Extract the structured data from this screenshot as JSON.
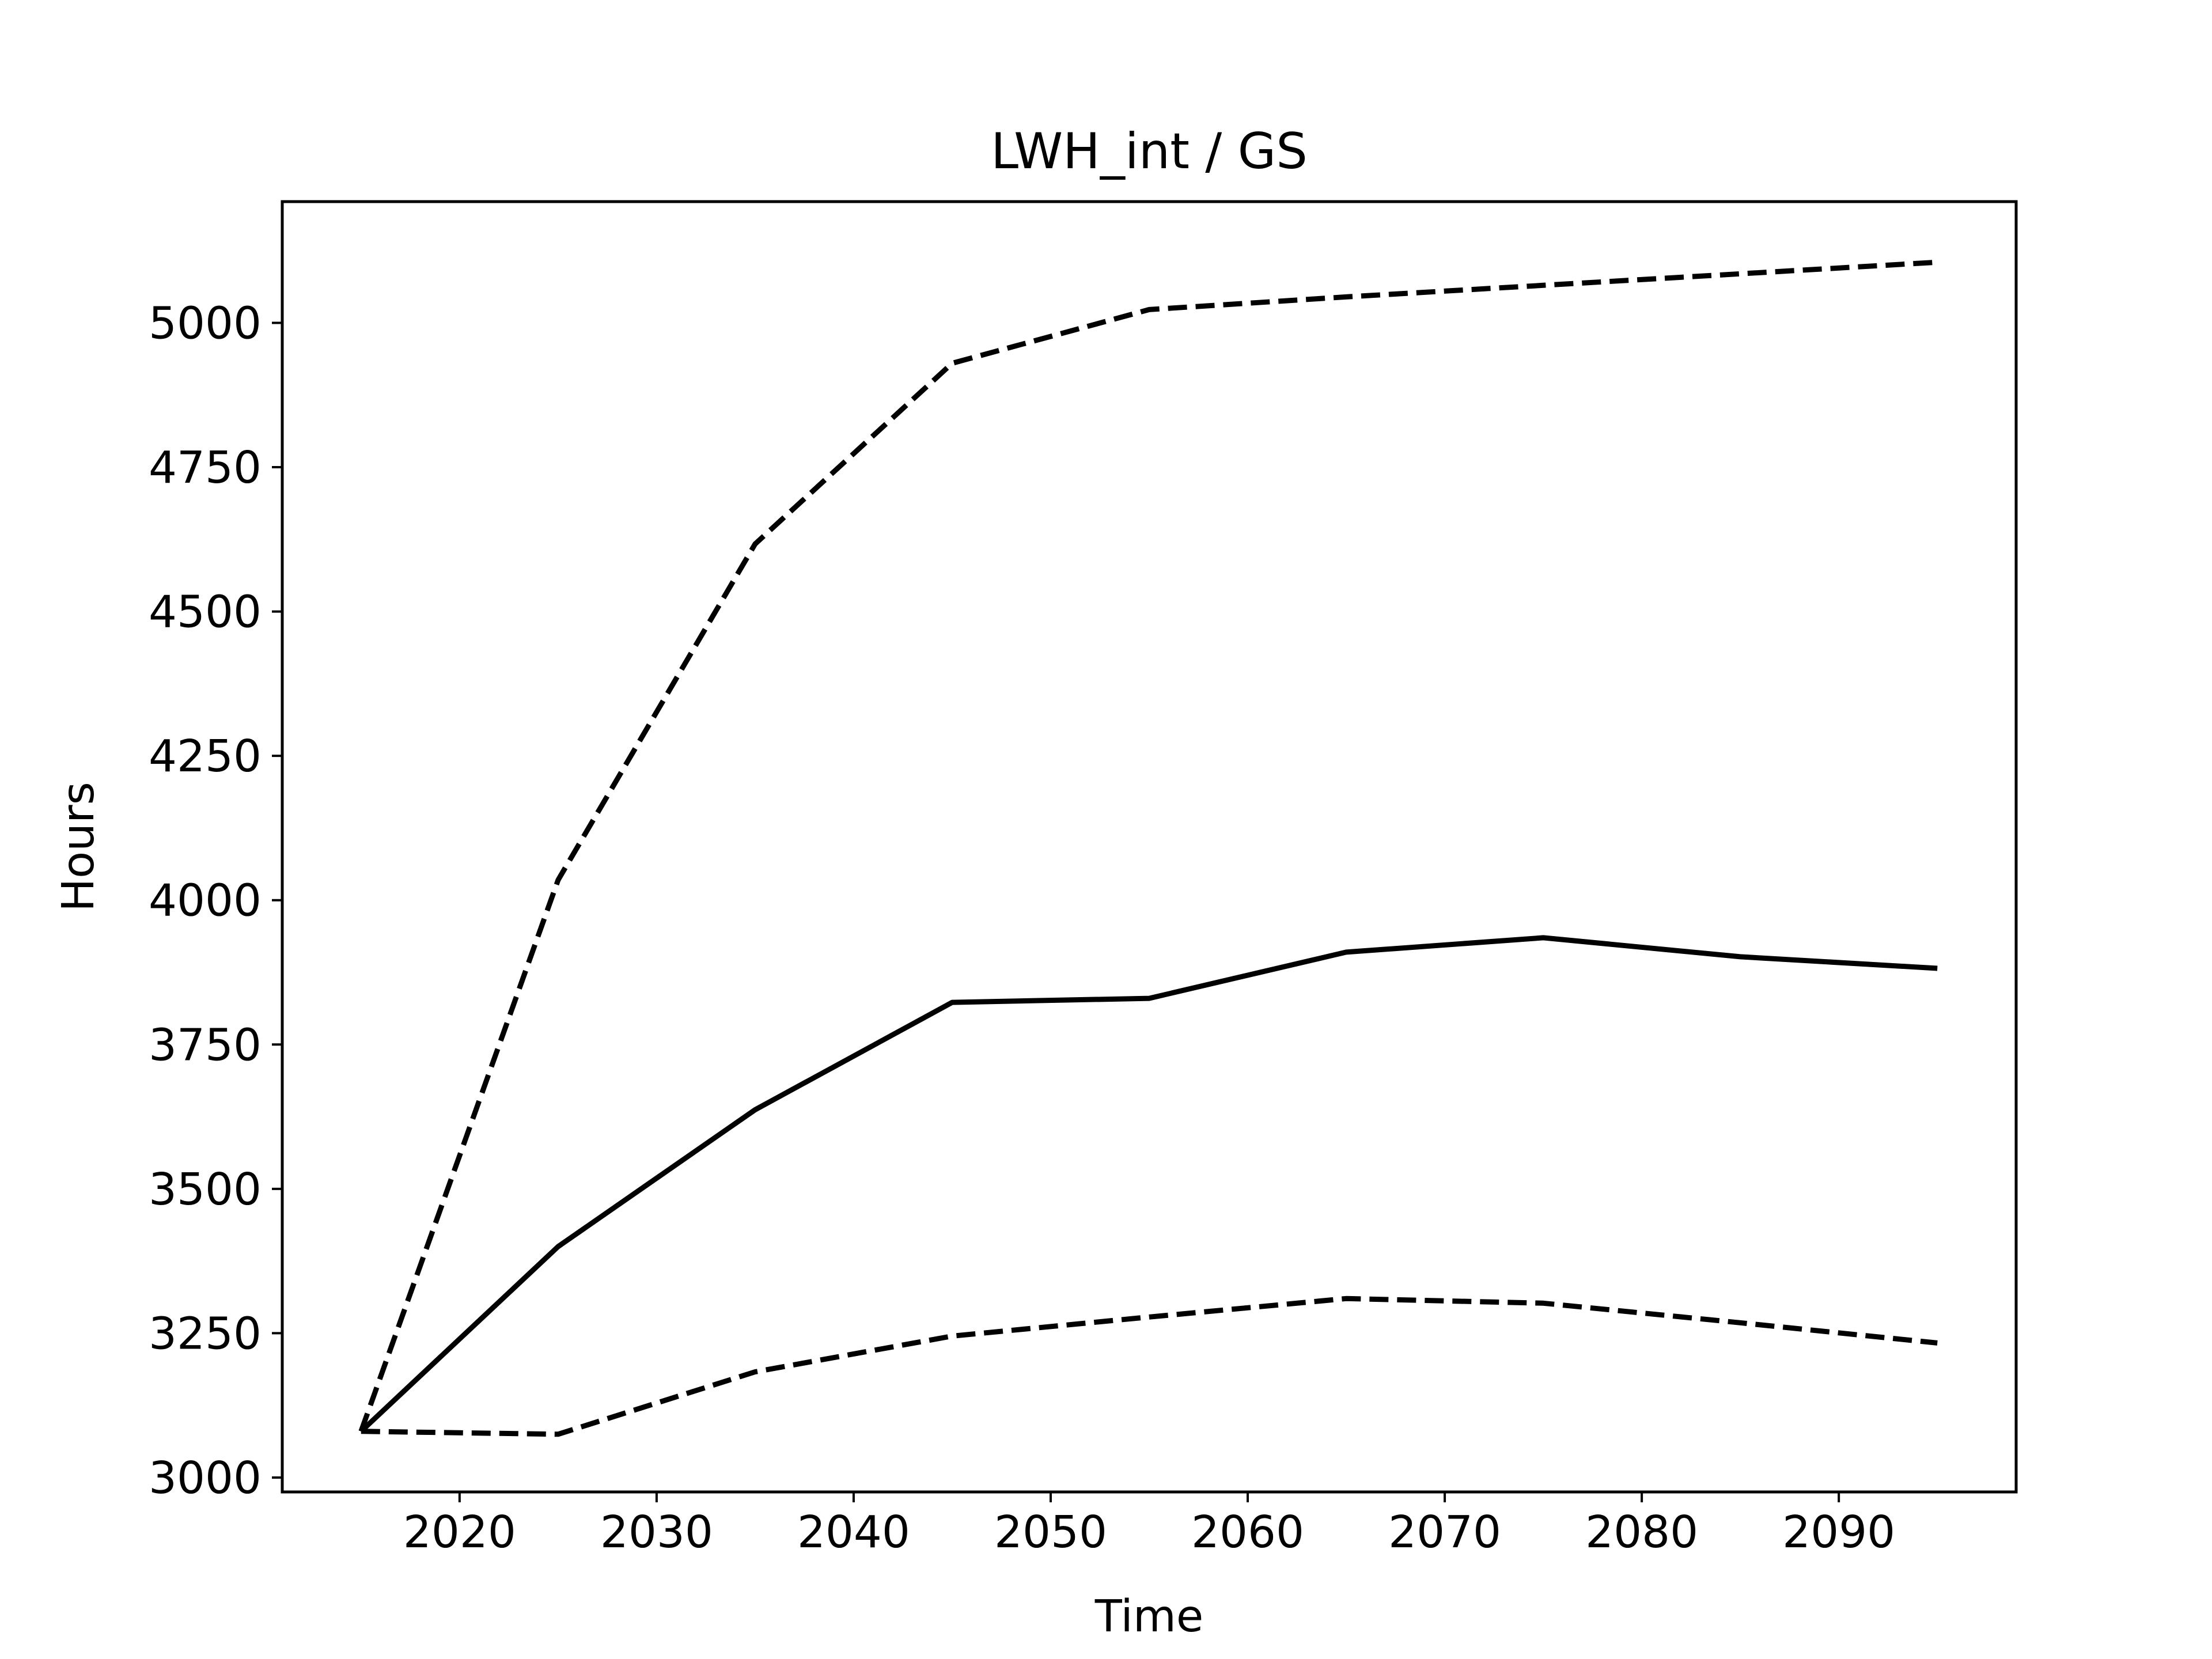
{
  "chart_data": {
    "type": "line",
    "title": "LWH_int / GS",
    "xlabel": "Time",
    "ylabel": "Hours",
    "xlim": [
      2011,
      2099
    ],
    "ylim": [
      2975,
      5210
    ],
    "x_ticks": [
      2020,
      2030,
      2040,
      2050,
      2060,
      2070,
      2080,
      2090
    ],
    "y_ticks": [
      3000,
      3250,
      3500,
      3750,
      4000,
      4250,
      4500,
      4750,
      5000
    ],
    "grid": false,
    "x": [
      2015,
      2025,
      2035,
      2045,
      2055,
      2065,
      2075,
      2085,
      2095
    ],
    "series": [
      {
        "line_style": "solid",
        "color": "#000000",
        "values": [
          3080,
          3400,
          3637,
          3823,
          3830,
          3910,
          3935,
          3902,
          3882
        ]
      },
      {
        "line_style": "dashed",
        "color": "#000000",
        "values": [
          3080,
          4035,
          4617,
          4930,
          5023,
          5045,
          5065,
          5085,
          5105
        ]
      },
      {
        "line_style": "dashed",
        "color": "#000000",
        "values": [
          3080,
          3075,
          3183,
          3245,
          3278,
          3310,
          3302,
          3268,
          3233
        ]
      }
    ]
  }
}
